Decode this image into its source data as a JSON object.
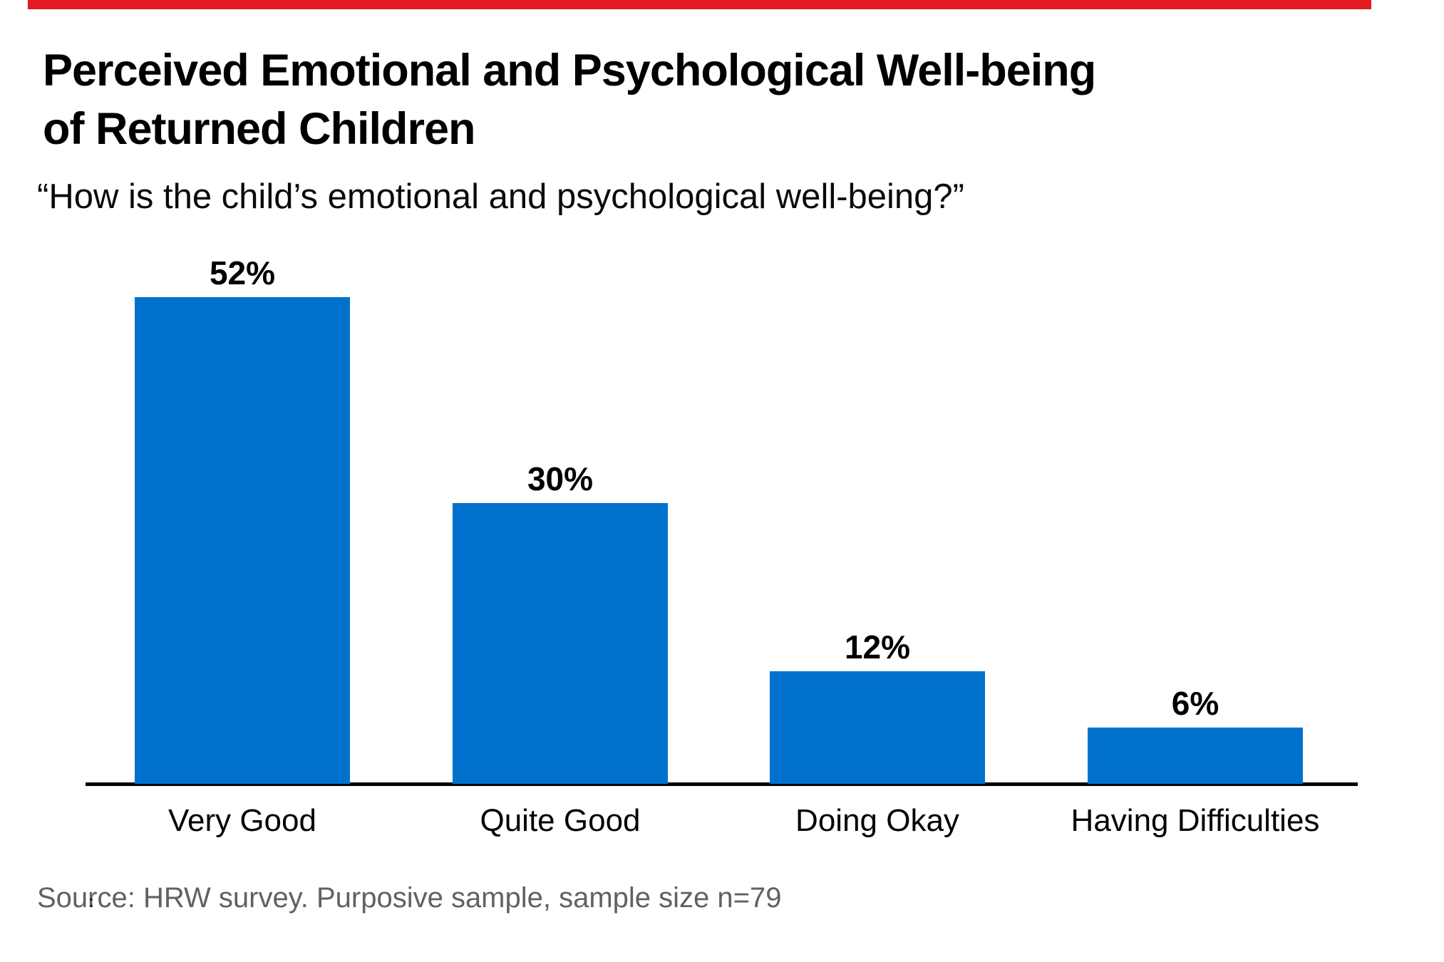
{
  "top_accent_bar": {
    "color": "#e31b23"
  },
  "header": {
    "title_line1": "Perceived Emotional and Psychological Well-being",
    "title_line2": "of Returned Children",
    "subtitle": "“How is the child’s emotional and psychological well-being?”"
  },
  "chart_data": {
    "type": "bar",
    "orientation": "vertical",
    "title": "Perceived Emotional and Psychological Well-being of Returned Children",
    "subtitle": "“How is the child’s emotional and psychological well-being?”",
    "categories": [
      "Very Good",
      "Quite Good",
      "Doing Okay",
      "Having Difficulties"
    ],
    "values": [
      52,
      30,
      12,
      6
    ],
    "value_labels": [
      "52%",
      "30%",
      "12%",
      "6%"
    ],
    "unit": "percent",
    "xlabel": "",
    "ylabel": "",
    "ylim": [
      0,
      55
    ],
    "grid": false,
    "legend": false,
    "bar_color": "#0072cd",
    "axis_color": "#000000"
  },
  "footer": {
    "source_text": "Source: HRW survey. Purposive sample, sample size n=79",
    "text_color": "#616161"
  },
  "artifacts": {
    "text_caret": ":"
  }
}
